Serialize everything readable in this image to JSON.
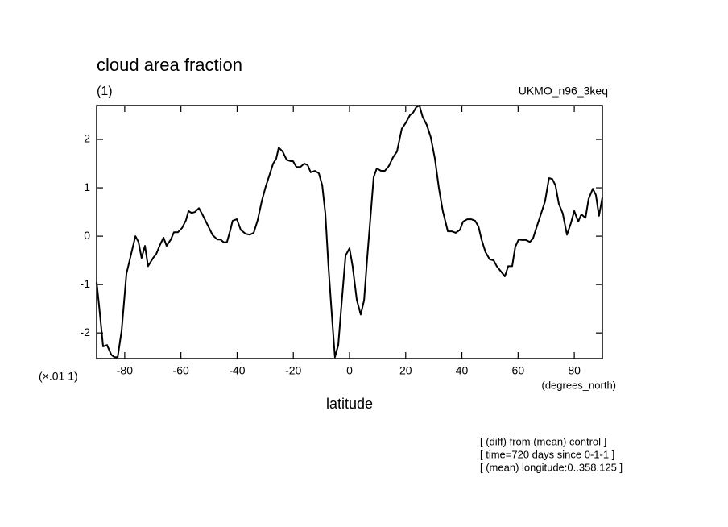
{
  "chart_data": {
    "type": "line",
    "title": "cloud area fraction",
    "units": "(1)",
    "experiment": "UKMO_n96_3keq",
    "multiplier": "(×.01 1)",
    "x_units": "(degrees_north)",
    "xlabel": "latitude",
    "notes": [
      "[ (diff) from (mean) control ]",
      "[ time=720 days since 0-1-1 ]",
      "[ (mean) longitude:0..358.125 ]"
    ],
    "x": [
      -90,
      -89.1,
      -87.7,
      -86.3,
      -84.8,
      -83.7,
      -82.5,
      -81.1,
      -79.4,
      -76.2,
      -75.1,
      -74,
      -72.8,
      -71.7,
      -69.9,
      -68.8,
      -67.6,
      -66.2,
      -65.1,
      -63.6,
      -62.5,
      -61.1,
      -59.6,
      -58.2,
      -57.3,
      -56.2,
      -55,
      -53.6,
      -52.2,
      -50.4,
      -48.7,
      -47,
      -45.9,
      -44.7,
      -43.6,
      -42.4,
      -41.6,
      -40.1,
      -38.7,
      -37,
      -35.5,
      -34.1,
      -32.7,
      -31.2,
      -29.8,
      -28.4,
      -27.2,
      -26.1,
      -25.2,
      -23.8,
      -22.4,
      -20.9,
      -20.1,
      -18.9,
      -17.5,
      -16.1,
      -14.9,
      -13.8,
      -12.3,
      -10.9,
      -9.7,
      -8.6,
      -7.5,
      -6.3,
      -5.2,
      -4,
      -2.9,
      -1.4,
      0,
      1.1,
      2.6,
      4,
      5.2,
      6.3,
      7.5,
      8.6,
      9.7,
      11.2,
      12.6,
      14,
      15.5,
      16.9,
      18.6,
      20.1,
      21.5,
      22.6,
      23.8,
      24.9,
      26,
      27.5,
      28.9,
      30.4,
      31.8,
      33.2,
      35,
      36.4,
      37.8,
      39.3,
      40.4,
      41.9,
      43.3,
      44.7,
      45.9,
      47,
      48.4,
      49.9,
      51.3,
      52.4,
      53.9,
      55.3,
      56.5,
      57.9,
      59,
      60.2,
      61.3,
      62.8,
      64.2,
      65.3,
      66.5,
      68.2,
      69.6,
      71,
      72.2,
      73.3,
      74.5,
      75.9,
      77.4,
      78.8,
      80,
      81.4,
      82.5,
      84,
      85.1,
      86.6,
      87.7,
      88.8,
      90
    ],
    "series": [
      {
        "color": "#000000",
        "values": [
          -0.95,
          -1.45,
          -2.28,
          -2.25,
          -2.45,
          -2.5,
          -2.5,
          -1.95,
          -0.78,
          0,
          -0.12,
          -0.45,
          -0.2,
          -0.62,
          -0.45,
          -0.37,
          -0.2,
          -0.03,
          -0.2,
          -0.07,
          0.08,
          0.08,
          0.17,
          0.33,
          0.52,
          0.48,
          0.5,
          0.58,
          0.43,
          0.22,
          0.02,
          -0.07,
          -0.07,
          -0.13,
          -0.12,
          0.13,
          0.32,
          0.35,
          0.13,
          0.05,
          0.03,
          0.07,
          0.33,
          0.73,
          1.03,
          1.28,
          1.5,
          1.6,
          1.83,
          1.75,
          1.58,
          1.55,
          1.55,
          1.43,
          1.43,
          1.5,
          1.47,
          1.32,
          1.35,
          1.3,
          1.05,
          0.47,
          -0.62,
          -1.62,
          -2.5,
          -2.25,
          -1.45,
          -0.4,
          -0.25,
          -0.62,
          -1.32,
          -1.62,
          -1.32,
          -0.45,
          0.42,
          1.22,
          1.4,
          1.35,
          1.35,
          1.45,
          1.63,
          1.75,
          2.22,
          2.35,
          2.5,
          2.55,
          2.67,
          2.7,
          2.47,
          2.3,
          2.05,
          1.6,
          1.0,
          0.52,
          0.1,
          0.1,
          0.07,
          0.13,
          0.3,
          0.35,
          0.35,
          0.32,
          0.2,
          -0.07,
          -0.33,
          -0.48,
          -0.5,
          -0.62,
          -0.73,
          -0.83,
          -0.62,
          -0.62,
          -0.22,
          -0.07,
          -0.08,
          -0.08,
          -0.12,
          -0.05,
          0.17,
          0.47,
          0.72,
          1.2,
          1.18,
          1.05,
          0.67,
          0.47,
          0.03,
          0.27,
          0.52,
          0.3,
          0.45,
          0.38,
          0.77,
          0.98,
          0.85,
          0.42,
          0.8
        ]
      }
    ],
    "xlim": [
      -90,
      90
    ],
    "xticks": [
      -80,
      -60,
      -40,
      -20,
      0,
      20,
      40,
      60,
      80
    ],
    "ylim": [
      -2.53,
      2.7
    ],
    "yticks": [
      -2,
      -1,
      0,
      1,
      2
    ]
  }
}
